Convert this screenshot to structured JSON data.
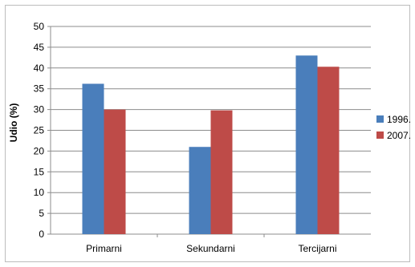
{
  "chart_data": {
    "type": "bar",
    "categories": [
      "Primarni",
      "Sekundarni",
      "Tercijarni"
    ],
    "series": [
      {
        "name": "1996.",
        "values": [
          36.2,
          21.0,
          43.0
        ],
        "color": "#4a7ebb"
      },
      {
        "name": "2007.",
        "values": [
          30.0,
          29.8,
          40.3
        ],
        "color": "#be4b48"
      }
    ],
    "ylabel": "Udio (%)",
    "xlabel": "",
    "ylim": [
      0,
      50
    ],
    "yticks": [
      0,
      5,
      10,
      15,
      20,
      25,
      30,
      35,
      40,
      45,
      50
    ],
    "grid": true,
    "legend": "right"
  }
}
